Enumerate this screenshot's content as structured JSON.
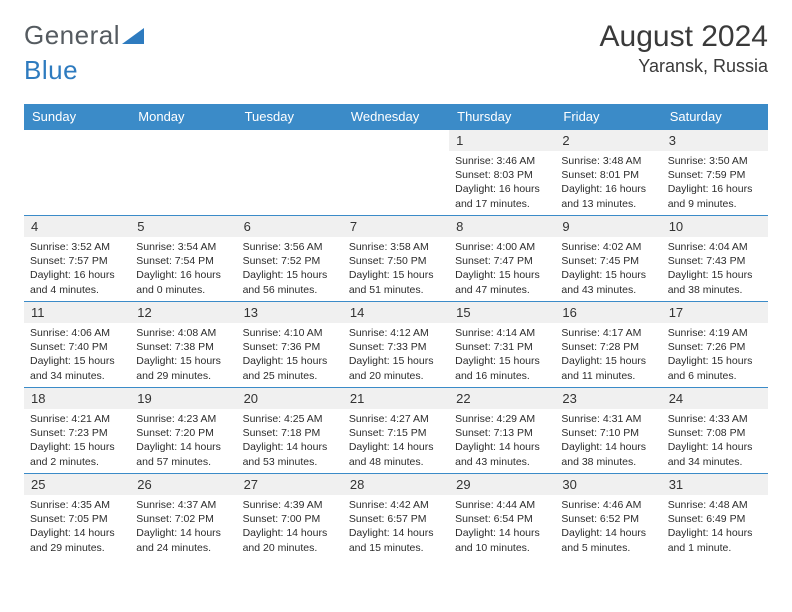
{
  "logo": {
    "part1": "General",
    "part2": "Blue"
  },
  "title": "August 2024",
  "location": "Yaransk, Russia",
  "dayHeaders": [
    "Sunday",
    "Monday",
    "Tuesday",
    "Wednesday",
    "Thursday",
    "Friday",
    "Saturday"
  ],
  "colors": {
    "header_bg": "#3b8bc8",
    "header_text": "#ffffff",
    "cell_border": "#3b8bc8",
    "daynum_bg": "#f0f0f0",
    "logo_gray": "#555b60",
    "logo_blue": "#2e7bbf"
  },
  "weeks": [
    [
      {
        "n": "",
        "sr": "",
        "ss": "",
        "dl": ""
      },
      {
        "n": "",
        "sr": "",
        "ss": "",
        "dl": ""
      },
      {
        "n": "",
        "sr": "",
        "ss": "",
        "dl": ""
      },
      {
        "n": "",
        "sr": "",
        "ss": "",
        "dl": ""
      },
      {
        "n": "1",
        "sr": "Sunrise: 3:46 AM",
        "ss": "Sunset: 8:03 PM",
        "dl": "Daylight: 16 hours and 17 minutes."
      },
      {
        "n": "2",
        "sr": "Sunrise: 3:48 AM",
        "ss": "Sunset: 8:01 PM",
        "dl": "Daylight: 16 hours and 13 minutes."
      },
      {
        "n": "3",
        "sr": "Sunrise: 3:50 AM",
        "ss": "Sunset: 7:59 PM",
        "dl": "Daylight: 16 hours and 9 minutes."
      }
    ],
    [
      {
        "n": "4",
        "sr": "Sunrise: 3:52 AM",
        "ss": "Sunset: 7:57 PM",
        "dl": "Daylight: 16 hours and 4 minutes."
      },
      {
        "n": "5",
        "sr": "Sunrise: 3:54 AM",
        "ss": "Sunset: 7:54 PM",
        "dl": "Daylight: 16 hours and 0 minutes."
      },
      {
        "n": "6",
        "sr": "Sunrise: 3:56 AM",
        "ss": "Sunset: 7:52 PM",
        "dl": "Daylight: 15 hours and 56 minutes."
      },
      {
        "n": "7",
        "sr": "Sunrise: 3:58 AM",
        "ss": "Sunset: 7:50 PM",
        "dl": "Daylight: 15 hours and 51 minutes."
      },
      {
        "n": "8",
        "sr": "Sunrise: 4:00 AM",
        "ss": "Sunset: 7:47 PM",
        "dl": "Daylight: 15 hours and 47 minutes."
      },
      {
        "n": "9",
        "sr": "Sunrise: 4:02 AM",
        "ss": "Sunset: 7:45 PM",
        "dl": "Daylight: 15 hours and 43 minutes."
      },
      {
        "n": "10",
        "sr": "Sunrise: 4:04 AM",
        "ss": "Sunset: 7:43 PM",
        "dl": "Daylight: 15 hours and 38 minutes."
      }
    ],
    [
      {
        "n": "11",
        "sr": "Sunrise: 4:06 AM",
        "ss": "Sunset: 7:40 PM",
        "dl": "Daylight: 15 hours and 34 minutes."
      },
      {
        "n": "12",
        "sr": "Sunrise: 4:08 AM",
        "ss": "Sunset: 7:38 PM",
        "dl": "Daylight: 15 hours and 29 minutes."
      },
      {
        "n": "13",
        "sr": "Sunrise: 4:10 AM",
        "ss": "Sunset: 7:36 PM",
        "dl": "Daylight: 15 hours and 25 minutes."
      },
      {
        "n": "14",
        "sr": "Sunrise: 4:12 AM",
        "ss": "Sunset: 7:33 PM",
        "dl": "Daylight: 15 hours and 20 minutes."
      },
      {
        "n": "15",
        "sr": "Sunrise: 4:14 AM",
        "ss": "Sunset: 7:31 PM",
        "dl": "Daylight: 15 hours and 16 minutes."
      },
      {
        "n": "16",
        "sr": "Sunrise: 4:17 AM",
        "ss": "Sunset: 7:28 PM",
        "dl": "Daylight: 15 hours and 11 minutes."
      },
      {
        "n": "17",
        "sr": "Sunrise: 4:19 AM",
        "ss": "Sunset: 7:26 PM",
        "dl": "Daylight: 15 hours and 6 minutes."
      }
    ],
    [
      {
        "n": "18",
        "sr": "Sunrise: 4:21 AM",
        "ss": "Sunset: 7:23 PM",
        "dl": "Daylight: 15 hours and 2 minutes."
      },
      {
        "n": "19",
        "sr": "Sunrise: 4:23 AM",
        "ss": "Sunset: 7:20 PM",
        "dl": "Daylight: 14 hours and 57 minutes."
      },
      {
        "n": "20",
        "sr": "Sunrise: 4:25 AM",
        "ss": "Sunset: 7:18 PM",
        "dl": "Daylight: 14 hours and 53 minutes."
      },
      {
        "n": "21",
        "sr": "Sunrise: 4:27 AM",
        "ss": "Sunset: 7:15 PM",
        "dl": "Daylight: 14 hours and 48 minutes."
      },
      {
        "n": "22",
        "sr": "Sunrise: 4:29 AM",
        "ss": "Sunset: 7:13 PM",
        "dl": "Daylight: 14 hours and 43 minutes."
      },
      {
        "n": "23",
        "sr": "Sunrise: 4:31 AM",
        "ss": "Sunset: 7:10 PM",
        "dl": "Daylight: 14 hours and 38 minutes."
      },
      {
        "n": "24",
        "sr": "Sunrise: 4:33 AM",
        "ss": "Sunset: 7:08 PM",
        "dl": "Daylight: 14 hours and 34 minutes."
      }
    ],
    [
      {
        "n": "25",
        "sr": "Sunrise: 4:35 AM",
        "ss": "Sunset: 7:05 PM",
        "dl": "Daylight: 14 hours and 29 minutes."
      },
      {
        "n": "26",
        "sr": "Sunrise: 4:37 AM",
        "ss": "Sunset: 7:02 PM",
        "dl": "Daylight: 14 hours and 24 minutes."
      },
      {
        "n": "27",
        "sr": "Sunrise: 4:39 AM",
        "ss": "Sunset: 7:00 PM",
        "dl": "Daylight: 14 hours and 20 minutes."
      },
      {
        "n": "28",
        "sr": "Sunrise: 4:42 AM",
        "ss": "Sunset: 6:57 PM",
        "dl": "Daylight: 14 hours and 15 minutes."
      },
      {
        "n": "29",
        "sr": "Sunrise: 4:44 AM",
        "ss": "Sunset: 6:54 PM",
        "dl": "Daylight: 14 hours and 10 minutes."
      },
      {
        "n": "30",
        "sr": "Sunrise: 4:46 AM",
        "ss": "Sunset: 6:52 PM",
        "dl": "Daylight: 14 hours and 5 minutes."
      },
      {
        "n": "31",
        "sr": "Sunrise: 4:48 AM",
        "ss": "Sunset: 6:49 PM",
        "dl": "Daylight: 14 hours and 1 minute."
      }
    ]
  ]
}
